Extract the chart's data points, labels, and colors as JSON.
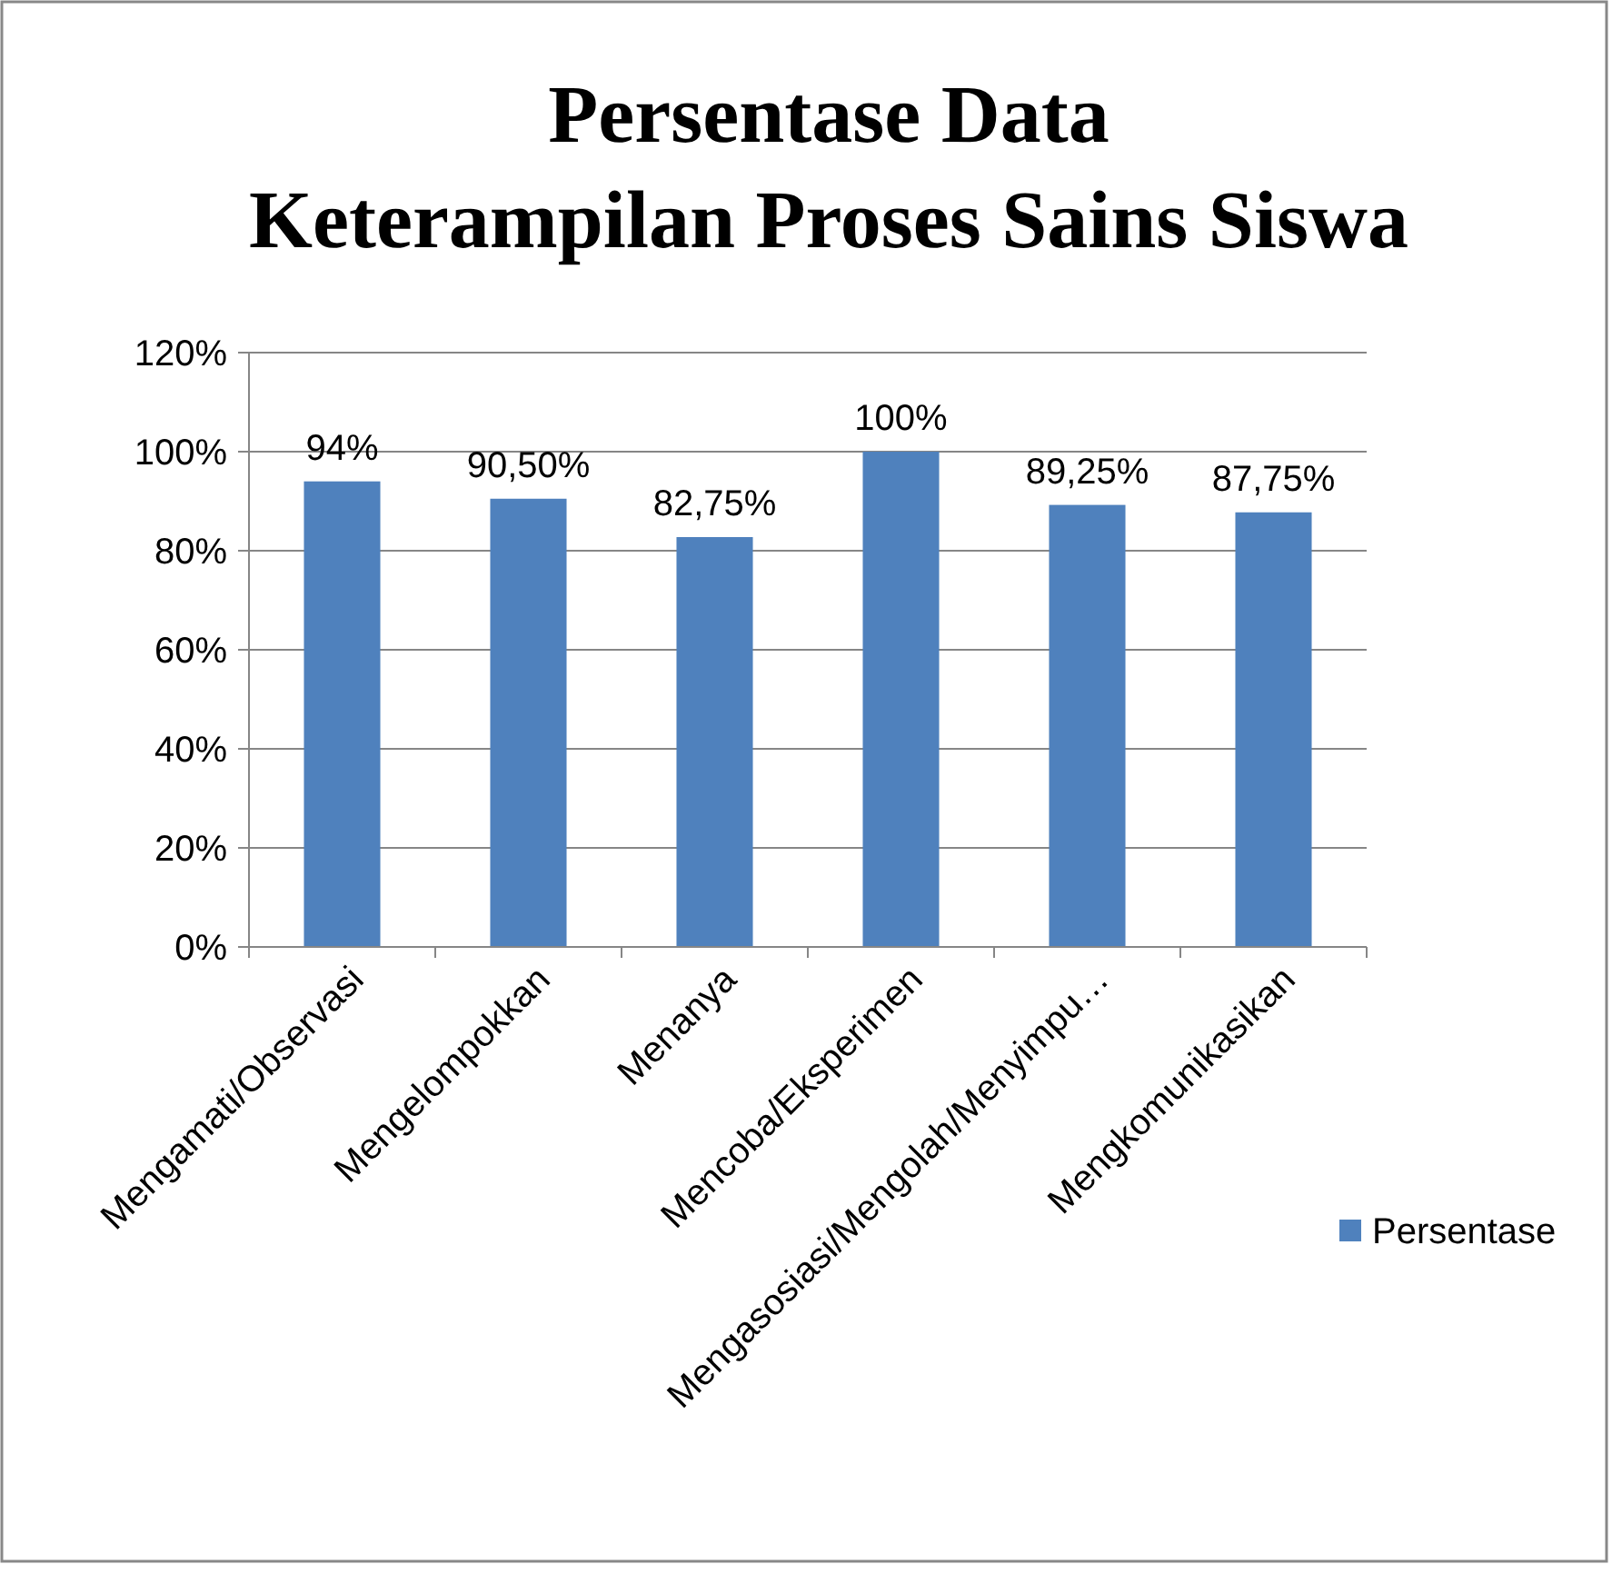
{
  "chart_data": {
    "type": "bar",
    "title": "Persentase Data\nKeterampilan Proses Sains Siswa",
    "categories": [
      "Mengamati/Observasi",
      "Mengelompokkan",
      "Menanya",
      "Mencoba/Eksperimen",
      "Mengasosiasi/Mengolah/Menyimpu…",
      "Mengkomunikasikan"
    ],
    "series": [
      {
        "name": "Persentase",
        "color": "#4f81bd",
        "values": [
          94,
          90.5,
          82.75,
          100,
          89.25,
          87.75
        ],
        "value_labels": [
          "94%",
          "90,50%",
          "82,75%",
          "100%",
          "89,25%",
          "87,75%"
        ]
      }
    ],
    "ylim": [
      0,
      120
    ],
    "yticks": [
      {
        "value": 0,
        "label": "0%"
      },
      {
        "value": 20,
        "label": "20%"
      },
      {
        "value": 40,
        "label": "40%"
      },
      {
        "value": 60,
        "label": "60%"
      },
      {
        "value": 80,
        "label": "80%"
      },
      {
        "value": 100,
        "label": "100%"
      },
      {
        "value": 120,
        "label": "120%"
      }
    ],
    "grid": "y",
    "legend": "right"
  }
}
